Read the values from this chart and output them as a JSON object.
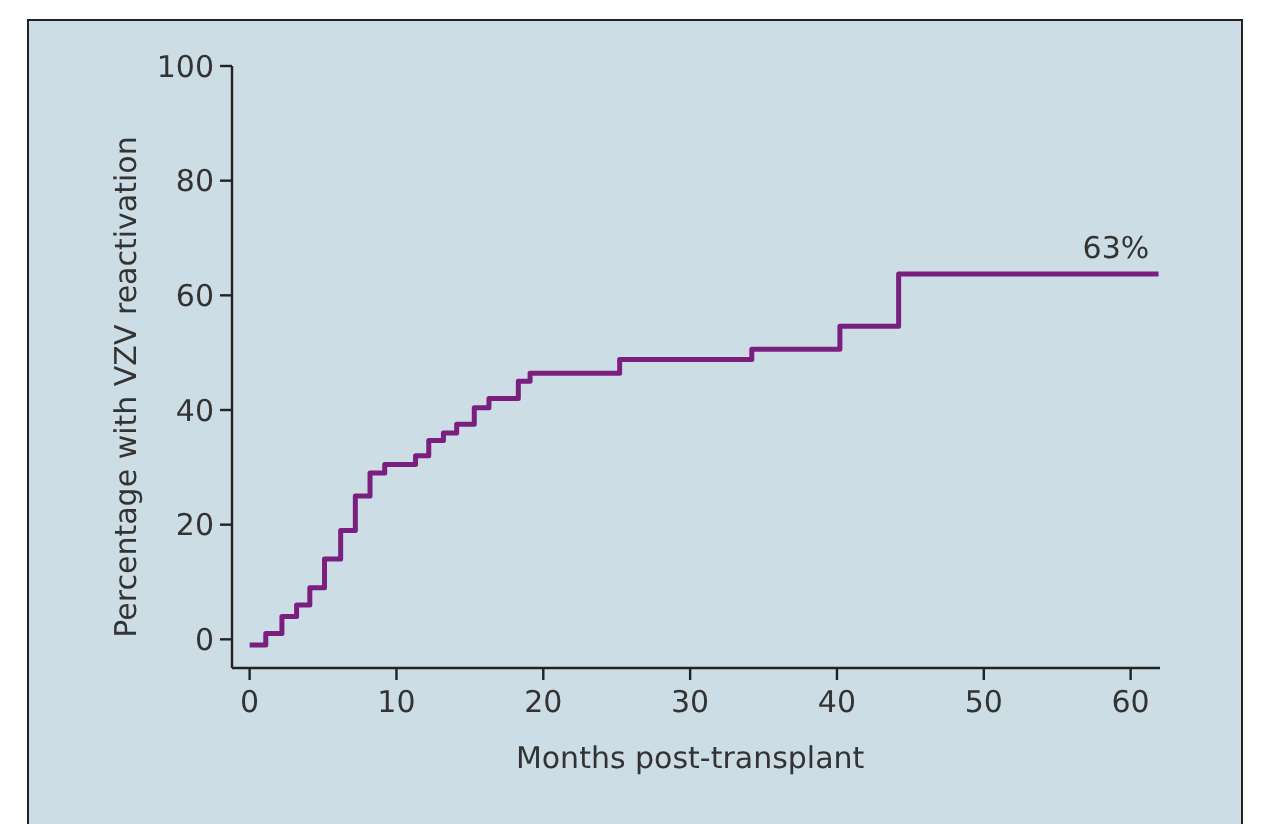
{
  "chart_data": {
    "type": "step",
    "xlabel": "Months post-transplant",
    "ylabel": "Percentage with VZV reactivation",
    "x": [
      0,
      1.1,
      2.2,
      3.2,
      4.1,
      5.1,
      6.2,
      7.2,
      8.2,
      9.2,
      11.3,
      12.2,
      13.2,
      14.1,
      15.3,
      16.3,
      18.3,
      19.1,
      25.2,
      34.2,
      40.2,
      44.2,
      61.9
    ],
    "series": [
      {
        "color": "#7b1f7f",
        "values": [
          -1,
          1,
          4,
          6,
          9,
          14,
          19,
          25,
          29,
          30.5,
          32,
          34.7,
          36,
          37.5,
          40.4,
          42,
          45,
          46.4,
          48.8,
          50.6,
          54.6,
          63.7,
          63.7
        ]
      }
    ],
    "xlim": [
      -1.2,
      62
    ],
    "xticks": [
      0,
      10,
      20,
      30,
      40,
      50,
      60
    ],
    "ylim": [
      -5,
      100
    ],
    "yticks": [
      0,
      20,
      40,
      60,
      80,
      100
    ],
    "annotations": [
      {
        "text": "63%",
        "x": 59,
        "y": 63.7
      }
    ]
  }
}
